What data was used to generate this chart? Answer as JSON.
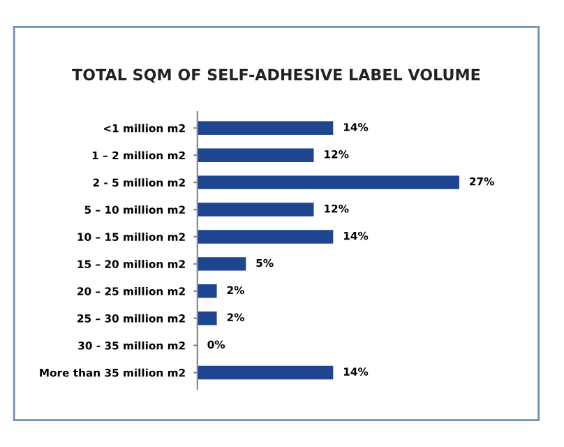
{
  "chart_data": {
    "type": "bar",
    "orientation": "horizontal",
    "title": "TOTAL SQM OF SELF-ADHESIVE LABEL VOLUME",
    "categories": [
      "<1 million m2",
      "1 – 2 million m2",
      "2 - 5 million m2",
      "5 – 10 million m2",
      "10 – 15 million m2",
      "15 – 20 million m2",
      "20 – 25 million m2",
      "25 – 30 million m2",
      "30 - 35 million m2",
      "More than 35 million m2"
    ],
    "values": [
      14,
      12,
      27,
      12,
      14,
      5,
      2,
      2,
      0,
      14
    ],
    "value_labels": [
      "14%",
      "12%",
      "27%",
      "12%",
      "14%",
      "5%",
      "2%",
      "2%",
      "0%",
      "14%"
    ],
    "color": "#1f4591",
    "data_labels": true
  }
}
